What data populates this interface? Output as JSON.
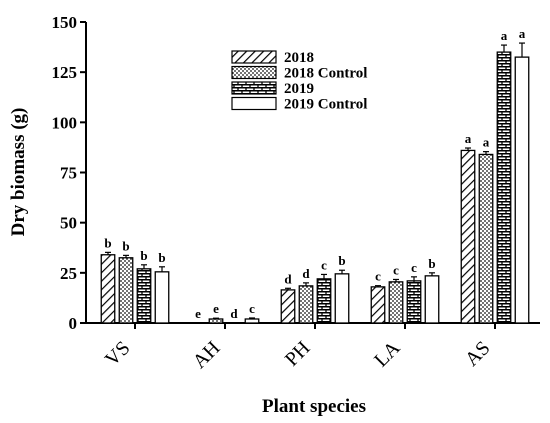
{
  "chart_data": {
    "type": "bar",
    "title": "",
    "xlabel": "Plant species",
    "ylabel": "Dry biomass (g)",
    "ylim": [
      0,
      150
    ],
    "yticks": [
      0,
      25,
      50,
      75,
      100,
      125,
      150
    ],
    "categories": [
      "VS",
      "AH",
      "PH",
      "LA",
      "AS"
    ],
    "legend_position": "top-center",
    "grid": false,
    "series": [
      {
        "name": "2018",
        "pattern": "diagonal-hatch",
        "values": [
          34,
          0,
          16.5,
          18,
          86
        ],
        "errors": [
          1.2,
          0,
          0.8,
          0.6,
          1.2
        ],
        "letters": [
          "b",
          "e",
          "d",
          "c",
          "a"
        ]
      },
      {
        "name": "2018 Control",
        "pattern": "dots",
        "values": [
          32.5,
          2,
          18.5,
          20.5,
          84
        ],
        "errors": [
          1.2,
          0.4,
          1.5,
          1.2,
          1.4
        ],
        "letters": [
          "b",
          "e",
          "d",
          "c",
          "a"
        ]
      },
      {
        "name": "2019",
        "pattern": "brick",
        "values": [
          27,
          0,
          22,
          21,
          135
        ],
        "errors": [
          2.0,
          0,
          2.2,
          2.0,
          3.5
        ],
        "letters": [
          "b",
          "d",
          "c",
          "c",
          "a"
        ]
      },
      {
        "name": "2019 Control",
        "pattern": "none",
        "values": [
          25.5,
          2,
          24.5,
          23.5,
          132.5
        ],
        "errors": [
          2.5,
          0.5,
          1.8,
          1.5,
          7.0
        ],
        "letters": [
          "b",
          "c",
          "b",
          "b",
          "a"
        ]
      }
    ]
  }
}
